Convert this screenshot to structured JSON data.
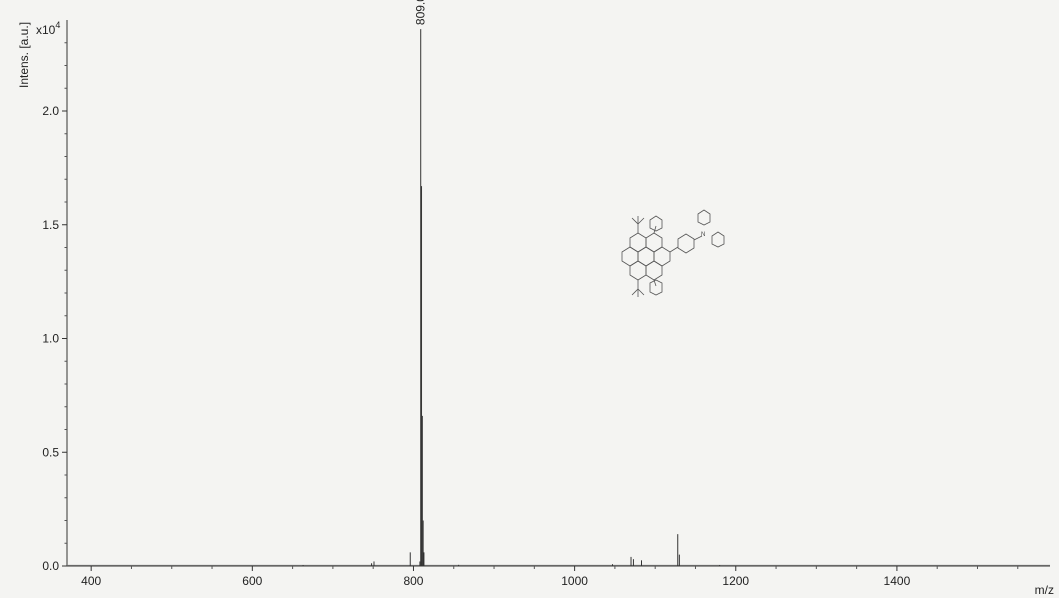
{
  "chart_data": {
    "type": "line",
    "ylabel": "Intens. [a.u.]",
    "y_scale_label": "x10",
    "y_scale_exponent": "4",
    "xlabel": "m/z",
    "xlim": [
      370,
      1590
    ],
    "ylim": [
      0,
      2.4
    ],
    "x_ticks": [
      400,
      600,
      800,
      1000,
      1200,
      1400
    ],
    "x_tick_labels": [
      "400",
      "600",
      "800",
      "1000",
      "1200",
      "1400"
    ],
    "y_ticks": [
      0.0,
      0.5,
      1.0,
      1.5,
      2.0
    ],
    "y_tick_labels": [
      "0.0",
      "0.5",
      "1.0",
      "1.5",
      "2.0"
    ],
    "grid": false,
    "series": [
      {
        "peaks": [
          {
            "x": 663,
            "y": 0.004
          },
          {
            "x": 748,
            "y": 0.012
          },
          {
            "x": 751,
            "y": 0.02
          },
          {
            "x": 796,
            "y": 0.06
          },
          {
            "x": 808,
            "y": 0.02
          },
          {
            "x": 809.0,
            "y": 2.36
          },
          {
            "x": 810,
            "y": 1.67
          },
          {
            "x": 811,
            "y": 0.66
          },
          {
            "x": 812,
            "y": 0.2
          },
          {
            "x": 813,
            "y": 0.06
          },
          {
            "x": 856,
            "y": 0.005
          },
          {
            "x": 1047,
            "y": 0.008
          },
          {
            "x": 1070,
            "y": 0.04
          },
          {
            "x": 1073,
            "y": 0.03
          },
          {
            "x": 1083,
            "y": 0.025
          },
          {
            "x": 1128,
            "y": 0.14
          },
          {
            "x": 1130,
            "y": 0.05
          },
          {
            "x": 1180,
            "y": 0.004
          }
        ]
      }
    ],
    "annotations": [
      {
        "text": "809.0",
        "x": 809.0,
        "y": 2.36
      }
    ]
  }
}
